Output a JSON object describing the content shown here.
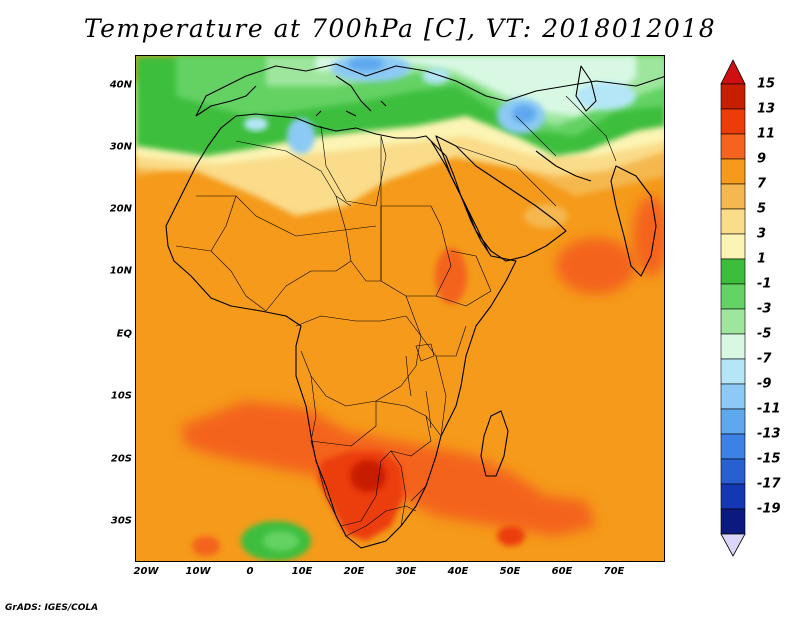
{
  "title": "Temperature at 700hPa [C], VT: 2018012018",
  "credit": "GrADS: IGES/COLA",
  "latitude_labels": [
    "40N",
    "30N",
    "20N",
    "10N",
    "EQ",
    "10S",
    "20S",
    "30S"
  ],
  "longitude_labels": [
    "20W",
    "10W",
    "0",
    "10E",
    "20E",
    "30E",
    "40E",
    "50E",
    "60E",
    "70E"
  ],
  "colorbar": {
    "labels": [
      "15",
      "13",
      "11",
      "9",
      "7",
      "5",
      "3",
      "1",
      "-1",
      "-3",
      "-5",
      "-7",
      "-9",
      "-11",
      "-13",
      "-15",
      "-17",
      "-19"
    ],
    "colors": [
      "#c81e00",
      "#ec3c0a",
      "#f4641e",
      "#f59a1a",
      "#f5b850",
      "#fadc8a",
      "#fcf4b4",
      "#3cbe3c",
      "#64d264",
      "#9ee69e",
      "#d8f8e4",
      "#b4e6f8",
      "#8ccaf5",
      "#5ea8ee",
      "#3c82e6",
      "#2860d2",
      "#1438b4",
      "#0c1a80"
    ],
    "over_color": "#d01010",
    "under_color": "#dcd6fa"
  }
}
